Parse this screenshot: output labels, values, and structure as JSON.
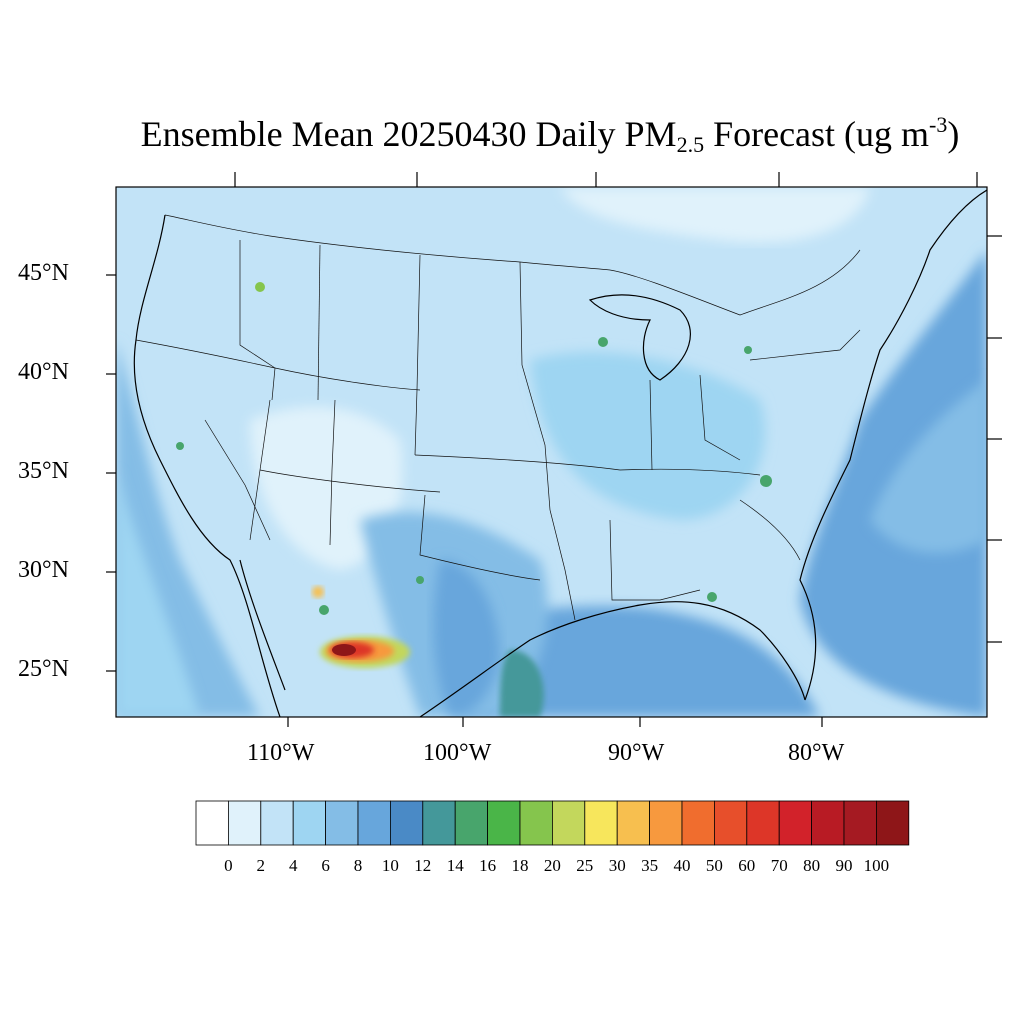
{
  "title": {
    "prefix": "Ensemble Mean 20250430 Daily PM",
    "subscript": "2.5",
    "middle": " Forecast (ug m",
    "superscript": "-3",
    "suffix": ")"
  },
  "map": {
    "region": "CONUS",
    "projection": "Lambert Conformal",
    "lat_labels": [
      "45°N",
      "40°N",
      "35°N",
      "30°N",
      "25°N"
    ],
    "lon_labels": [
      "110°W",
      "100°W",
      "90°W",
      "80°W"
    ],
    "background_color": "#c2e3f7",
    "hotspots": [
      {
        "name": "northern-mexico-plume",
        "max_category": "100"
      },
      {
        "name": "texas-gulf-coast",
        "max_category": "14"
      }
    ]
  },
  "colorbar": {
    "labels": [
      "0",
      "2",
      "4",
      "6",
      "8",
      "10",
      "12",
      "14",
      "16",
      "18",
      "20",
      "25",
      "30",
      "35",
      "40",
      "50",
      "60",
      "70",
      "80",
      "90",
      "100"
    ],
    "colors": [
      "#ffffff",
      "#e0f2fb",
      "#c2e3f7",
      "#9ed5f2",
      "#84bde6",
      "#67a6dc",
      "#4a8ac6",
      "#44989a",
      "#48a56c",
      "#4ab548",
      "#85c54d",
      "#c3d75c",
      "#f7e65c",
      "#f7bf4f",
      "#f7993e",
      "#f06d2e",
      "#e74f2b",
      "#dd3628",
      "#d2222a",
      "#b81b24",
      "#a51a22",
      "#8e1618"
    ]
  }
}
